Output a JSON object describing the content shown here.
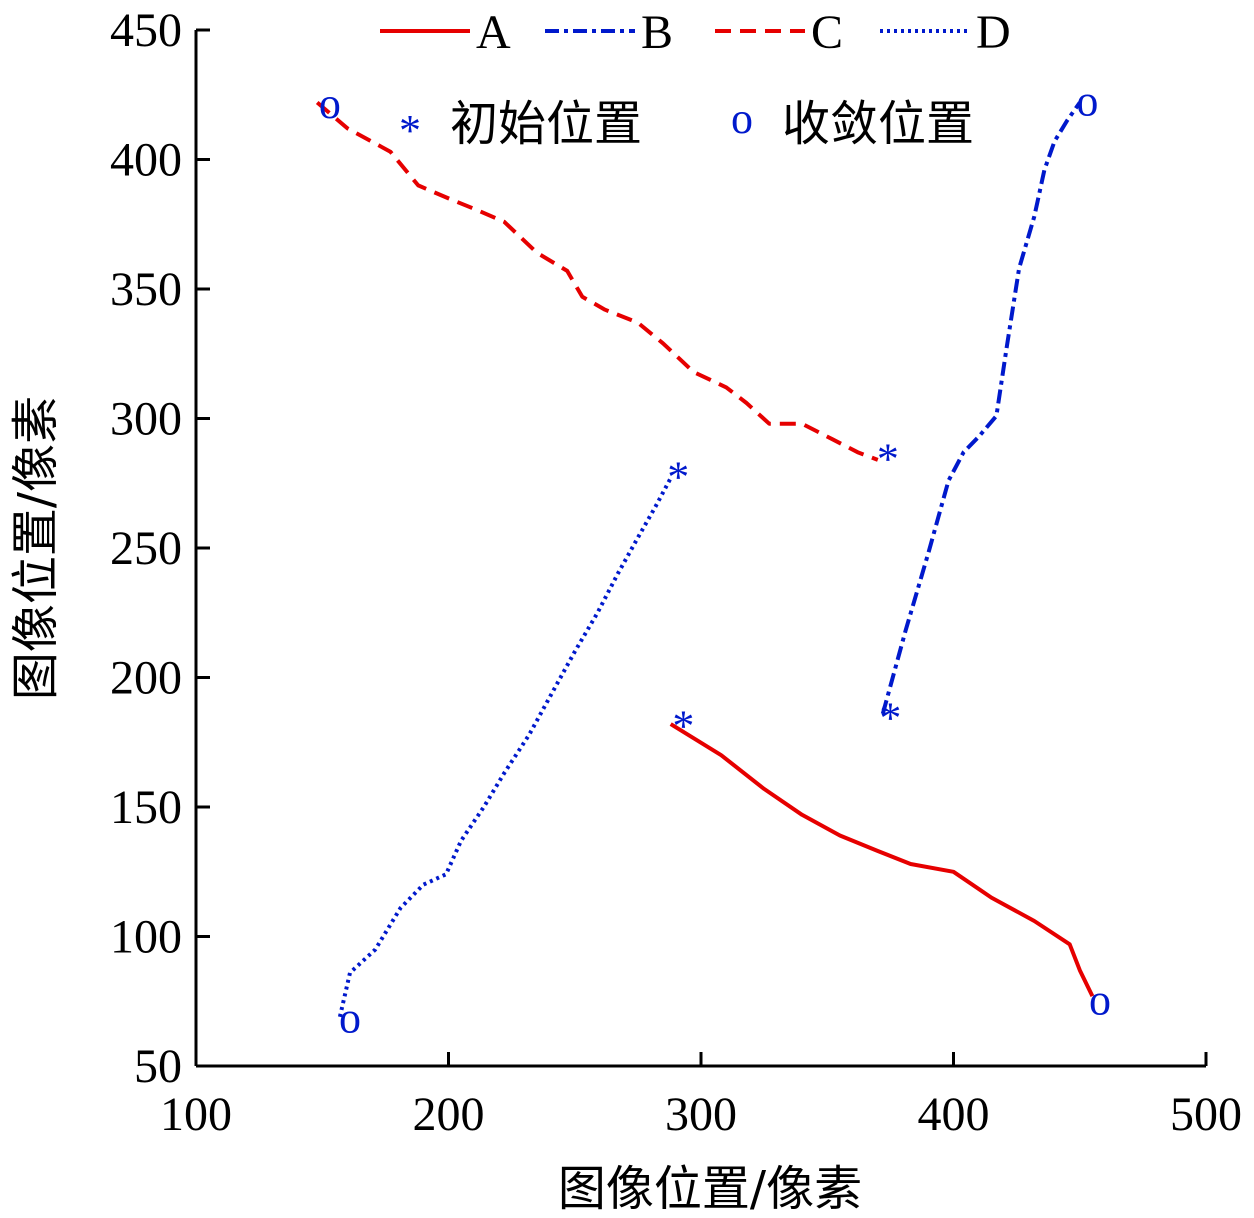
{
  "chart_data": {
    "type": "line",
    "title": "",
    "xlabel": "图像位置/像素",
    "ylabel": "图像位置/像素",
    "xlim": [
      100,
      500
    ],
    "ylim": [
      50,
      450
    ],
    "xticks": [
      100,
      200,
      300,
      400,
      500
    ],
    "yticks": [
      50,
      100,
      150,
      200,
      250,
      300,
      350,
      400,
      450
    ],
    "grid": false,
    "legend_position": "top",
    "series": [
      {
        "name": "A",
        "color": "#e60000",
        "style": "solid",
        "points": [
          [
            288,
            182
          ],
          [
            308,
            170
          ],
          [
            325,
            157
          ],
          [
            340,
            147
          ],
          [
            355,
            139
          ],
          [
            370,
            133
          ],
          [
            383,
            128
          ],
          [
            400,
            125
          ],
          [
            415,
            115
          ],
          [
            432,
            106
          ],
          [
            446,
            97
          ],
          [
            450,
            87
          ],
          [
            455,
            77
          ]
        ],
        "start": [
          293,
          185
        ],
        "end": [
          458,
          75
        ]
      },
      {
        "name": "B",
        "color": "#0019cc",
        "style": "dashdot",
        "points": [
          [
            372,
            186
          ],
          [
            381,
            218
          ],
          [
            390,
            248
          ],
          [
            398,
            276
          ],
          [
            404,
            287
          ],
          [
            410,
            293
          ],
          [
            417,
            301
          ],
          [
            421,
            327
          ],
          [
            426,
            358
          ],
          [
            432,
            378
          ],
          [
            436,
            396
          ],
          [
            440,
            407
          ],
          [
            445,
            415
          ],
          [
            450,
            422
          ]
        ],
        "start": [
          375,
          188
        ],
        "end": [
          453,
          422
        ]
      },
      {
        "name": "C",
        "color": "#e60000",
        "style": "dashed",
        "points": [
          [
            148,
            422
          ],
          [
            160,
            412
          ],
          [
            177,
            403
          ],
          [
            188,
            390
          ],
          [
            200,
            385
          ],
          [
            210,
            381
          ],
          [
            222,
            376
          ],
          [
            235,
            364
          ],
          [
            247,
            357
          ],
          [
            253,
            347
          ],
          [
            262,
            342
          ],
          [
            275,
            337
          ],
          [
            285,
            329
          ],
          [
            297,
            318
          ],
          [
            310,
            312
          ],
          [
            318,
            306
          ],
          [
            327,
            298
          ],
          [
            340,
            298
          ],
          [
            352,
            292
          ],
          [
            362,
            287
          ],
          [
            370,
            284
          ]
        ],
        "start": [
          374,
          288
        ],
        "end": [
          153,
          421
        ]
      },
      {
        "name": "D",
        "color": "#0019cc",
        "style": "dotted",
        "points": [
          [
            157,
            69
          ],
          [
            161,
            86
          ],
          [
            171,
            95
          ],
          [
            181,
            111
          ],
          [
            190,
            120
          ],
          [
            199,
            124
          ],
          [
            205,
            137
          ],
          [
            214,
            150
          ],
          [
            222,
            163
          ],
          [
            232,
            178
          ],
          [
            241,
            194
          ],
          [
            250,
            210
          ],
          [
            259,
            225
          ],
          [
            267,
            240
          ],
          [
            275,
            254
          ],
          [
            282,
            266
          ],
          [
            288,
            277
          ]
        ],
        "start": [
          291,
          281
        ],
        "end": [
          161,
          68
        ]
      }
    ],
    "legend": {
      "series_labels": [
        "A",
        "B",
        "C",
        "D"
      ],
      "start_label": "初始位置",
      "end_label": "收敛位置",
      "start_symbol": "*",
      "end_symbol": "o",
      "marker_color": "#0019cc"
    }
  }
}
